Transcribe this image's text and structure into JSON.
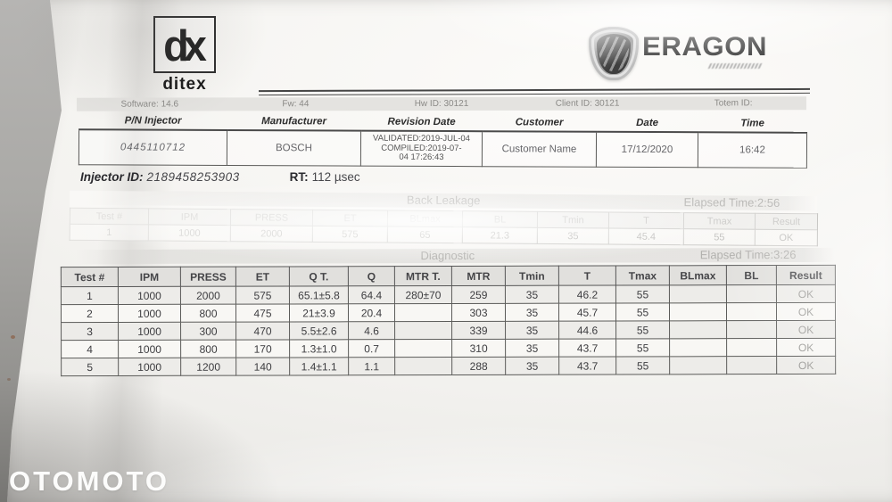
{
  "branding": {
    "ditex": {
      "mark": "dx",
      "name": "ditex"
    },
    "eragon": {
      "name": "ERAGON"
    }
  },
  "info_bar": {
    "software": "Software: 14.6",
    "fw": "Fw: 44",
    "hw_id": "Hw ID: 30121",
    "client_id": "Client ID: 30121",
    "totem_id": "Totem ID:"
  },
  "header_table": {
    "columns": [
      "P/N Injector",
      "Manufacturer",
      "Revision Date",
      "Customer",
      "Date",
      "Time"
    ],
    "rows": [
      [
        "0445110712",
        "BOSCH",
        "VALIDATED:2019-JUL-04\nCOMPILED:2019-07-\n04  17:26:43",
        "Customer Name",
        "17/12/2020",
        "16:42"
      ]
    ]
  },
  "injector_line": {
    "id_label": "Injector ID:",
    "id_value": "2189458253903",
    "rt_label": "RT:",
    "rt_value": "112 µsec"
  },
  "back_leakage": {
    "title": "Back Leakage",
    "elapsed": "Elapsed Time:2:56",
    "columns": [
      "Test #",
      "IPM",
      "PRESS",
      "ET",
      "BLmax",
      "BL",
      "Tmin",
      "T",
      "Tmax",
      "Result"
    ],
    "rows": [
      [
        "1",
        "1000",
        "2000",
        "575",
        "65",
        "21.3",
        "35",
        "45.4",
        "55",
        "OK"
      ]
    ]
  },
  "diagnostic": {
    "title": "Diagnostic",
    "elapsed": "Elapsed Time:3:26",
    "columns": [
      "Test #",
      "IPM",
      "PRESS",
      "ET",
      "Q T.",
      "Q",
      "MTR T.",
      "MTR",
      "Tmin",
      "T",
      "Tmax",
      "BLmax",
      "BL",
      "Result"
    ],
    "rows": [
      [
        "1",
        "1000",
        "2000",
        "575",
        "65.1±5.8",
        "64.4",
        "280±70",
        "259",
        "35",
        "46.2",
        "55",
        "",
        "",
        "OK"
      ],
      [
        "2",
        "1000",
        "800",
        "475",
        "21±3.9",
        "20.4",
        "",
        "303",
        "35",
        "45.7",
        "55",
        "",
        "",
        "OK"
      ],
      [
        "3",
        "1000",
        "300",
        "470",
        "5.5±2.6",
        "4.6",
        "",
        "339",
        "35",
        "44.6",
        "55",
        "",
        "",
        "OK"
      ],
      [
        "4",
        "1000",
        "800",
        "170",
        "1.3±1.0",
        "0.7",
        "",
        "310",
        "35",
        "43.7",
        "55",
        "",
        "",
        "OK"
      ],
      [
        "5",
        "1000",
        "1200",
        "140",
        "1.4±1.1",
        "1.1",
        "",
        "288",
        "35",
        "43.7",
        "55",
        "",
        "",
        "OK"
      ]
    ]
  },
  "watermark": "OTOMOTO"
}
